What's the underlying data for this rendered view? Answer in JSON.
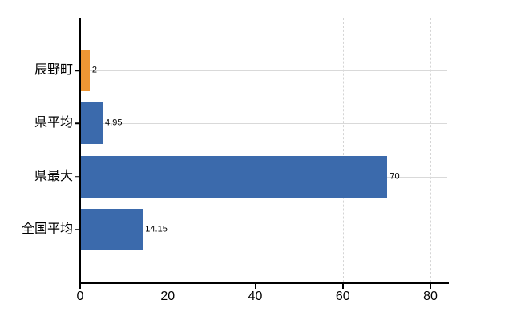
{
  "chart_data": {
    "type": "bar",
    "orientation": "horizontal",
    "title": "",
    "xlabel": "",
    "ylabel": "",
    "categories": [
      "辰野町",
      "県平均",
      "県最大",
      "全国平均"
    ],
    "values": [
      2,
      4.95,
      70,
      14.15
    ],
    "value_labels": [
      "2",
      "4.95",
      "70",
      "14.15"
    ],
    "series": [
      {
        "name": "",
        "values": [
          2,
          4.95,
          70,
          14.15
        ]
      }
    ],
    "bar_colors": [
      "#ee9634",
      "#3b6aac",
      "#3b6aac",
      "#3b6aac"
    ],
    "x_ticks": [
      0,
      20,
      40,
      60,
      80
    ],
    "x_tick_labels": [
      "0",
      "20",
      "40",
      "60",
      "80"
    ],
    "xlim": [
      0,
      84.2
    ],
    "grid": true,
    "legend": "none"
  },
  "colors": {
    "background": "#ffffff",
    "bar_blue": "#3b6aac",
    "bar_orange": "#ee9634",
    "gridline": "#d9d9d9",
    "axis": "#000000",
    "text": "#000000"
  }
}
